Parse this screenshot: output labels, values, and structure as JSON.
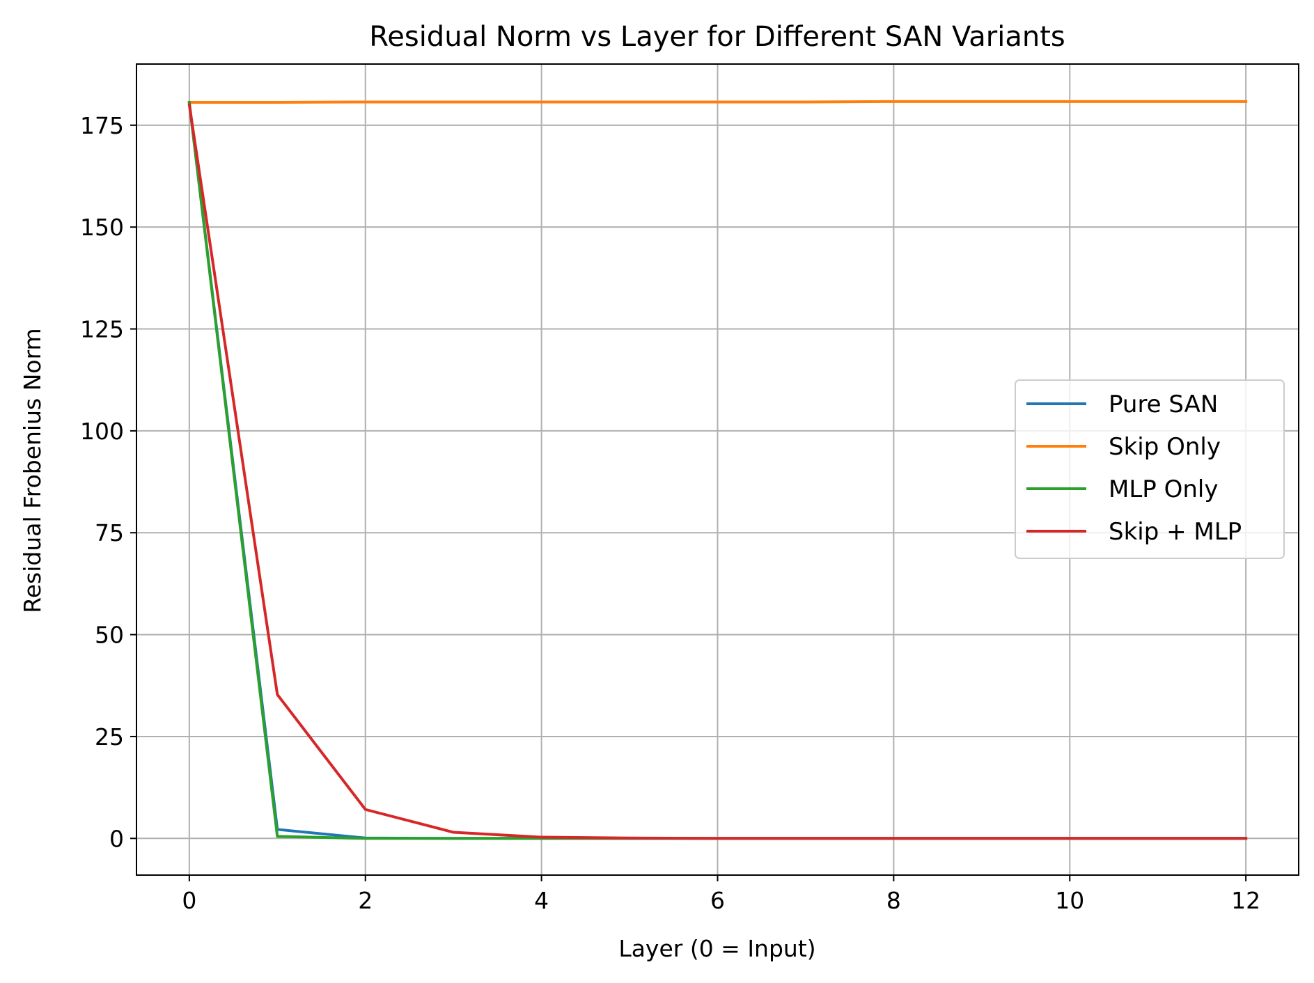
{
  "chart_data": {
    "type": "line",
    "title": "Residual Norm vs Layer for Different SAN Variants",
    "xlabel": "Layer (0 = Input)",
    "ylabel": "Residual Frobenius Norm",
    "x": [
      0,
      1,
      2,
      3,
      4,
      5,
      6,
      7,
      8,
      9,
      10,
      11,
      12
    ],
    "xlim": [
      -0.6,
      12.6
    ],
    "ylim": [
      -9.0,
      190.0
    ],
    "xticks": [
      0,
      2,
      4,
      6,
      8,
      10,
      12
    ],
    "xtick_labels": [
      "0",
      "2",
      "4",
      "6",
      "8",
      "10",
      "12"
    ],
    "yticks": [
      0,
      25,
      50,
      75,
      100,
      125,
      150,
      175
    ],
    "ytick_labels": [
      "0",
      "25",
      "50",
      "75",
      "100",
      "125",
      "150",
      "175"
    ],
    "grid": true,
    "legend": "center-right",
    "series": [
      {
        "name": "Pure SAN",
        "color": "#1f77b4",
        "values": [
          180.5,
          2.2,
          0.1,
          0.0,
          0.0,
          0.0,
          0.0,
          0.0,
          0.0,
          0.0,
          0.0,
          0.0,
          0.0
        ]
      },
      {
        "name": "Skip Only",
        "color": "#ff7f0e",
        "values": [
          180.6,
          180.6,
          180.7,
          180.7,
          180.7,
          180.7,
          180.7,
          180.7,
          180.8,
          180.8,
          180.8,
          180.8,
          180.8
        ]
      },
      {
        "name": "MLP Only",
        "color": "#2ca02c",
        "values": [
          180.6,
          0.5,
          0.0,
          0.0,
          0.0,
          0.0,
          0.0,
          0.0,
          0.0,
          0.0,
          0.0,
          0.0,
          0.0
        ]
      },
      {
        "name": "Skip + MLP",
        "color": "#d62728",
        "values": [
          180.0,
          35.3,
          7.1,
          1.5,
          0.3,
          0.1,
          0.0,
          0.0,
          0.0,
          0.0,
          0.0,
          0.0,
          0.0
        ]
      }
    ]
  }
}
